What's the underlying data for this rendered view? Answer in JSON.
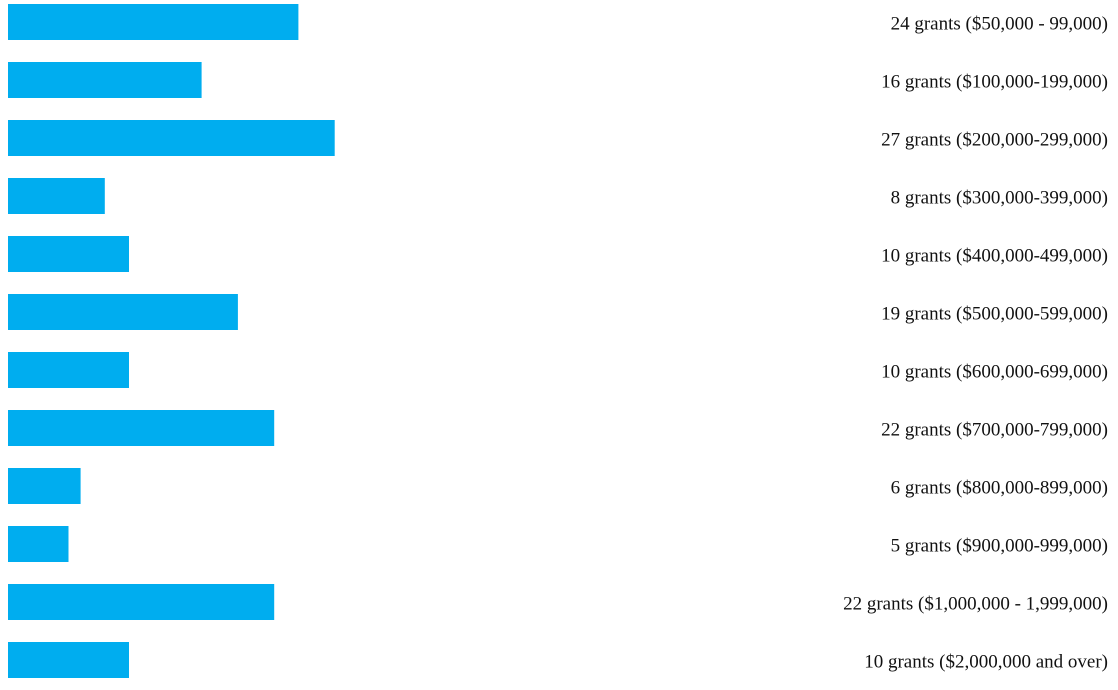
{
  "chart_data": {
    "type": "bar",
    "orientation": "horizontal",
    "bar_color": "#00ADEF",
    "categories": [
      "24 grants ($50,000 - 99,000)",
      "16 grants ($100,000-199,000)",
      "27 grants ($200,000-299,000)",
      "8 grants ($300,000-399,000)",
      "10 grants ($400,000-499,000)",
      "19 grants ($500,000-599,000)",
      "10 grants ($600,000-699,000)",
      "22 grants ($700,000-799,000)",
      "6  grants ($800,000-899,000)",
      "5 grants ($900,000-999,000)",
      "22 grants ($1,000,000 - 1,999,000)",
      "10  grants ($2,000,000 and over)"
    ],
    "values": [
      24,
      16,
      27,
      8,
      10,
      19,
      10,
      22,
      6,
      5,
      22,
      10
    ],
    "title": "",
    "xlabel": "",
    "ylabel": "",
    "grid": false,
    "legend": "none"
  }
}
